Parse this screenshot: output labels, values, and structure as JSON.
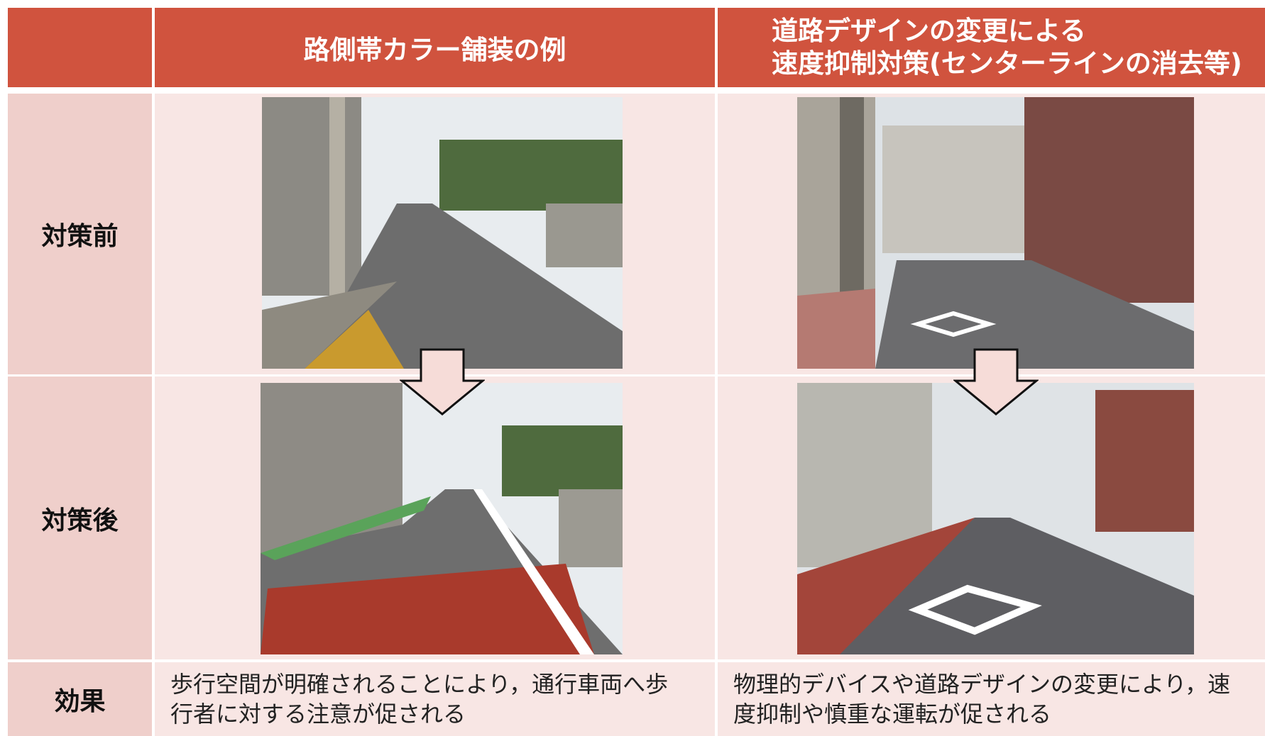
{
  "header": {
    "column_1": "路側帯カラー舗装の例",
    "column_2": [
      "道路デザインの変更による",
      "速度抑制対策(センターラインの消去等)"
    ]
  },
  "rows": [
    {
      "label": "対策前"
    },
    {
      "label": "対策後"
    },
    {
      "label": "効果",
      "column_1": [
        "歩行空間が明確されることにより，通行車両へ歩",
        "行者に対する注意が促される"
      ],
      "column_2": [
        "物理的デバイスや道路デザインの変更により，速",
        "度抑制や慎重な運転が促される"
      ]
    }
  ]
}
